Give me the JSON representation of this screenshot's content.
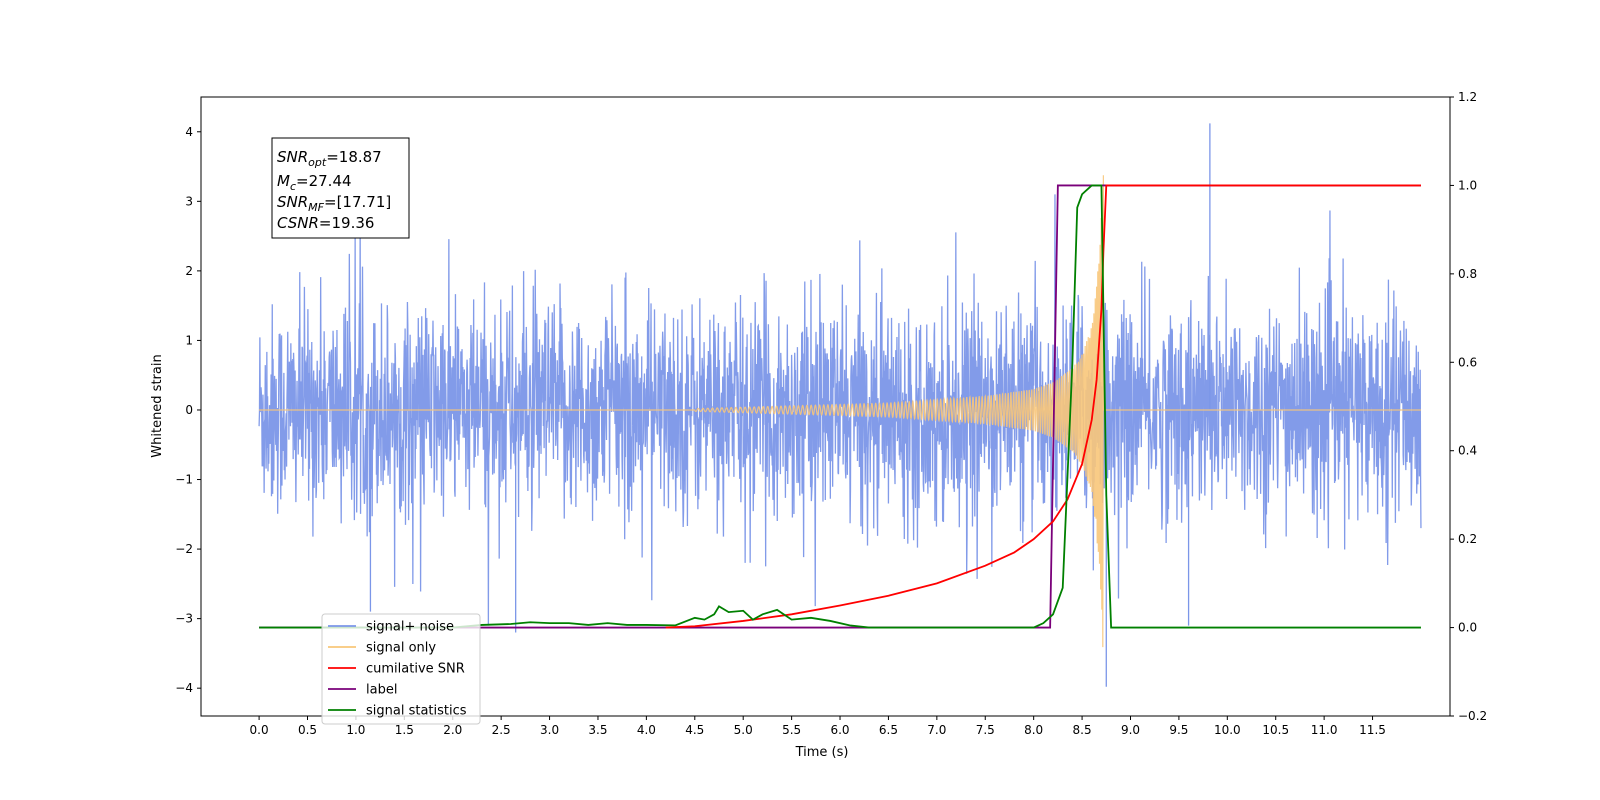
{
  "chart_data": {
    "type": "line",
    "xlabel": "Time (s)",
    "ylabel": "Whitened strain",
    "xlim": [
      -0.6,
      12.3
    ],
    "ylim": [
      -4.4,
      4.5
    ],
    "y2lim": [
      -0.2,
      1.2
    ],
    "x_ticks": [
      "0.0",
      "0.5",
      "1.0",
      "1.5",
      "2.0",
      "2.5",
      "3.0",
      "3.5",
      "4.0",
      "4.5",
      "5.0",
      "5.5",
      "6.0",
      "6.5",
      "7.0",
      "7.5",
      "8.0",
      "8.5",
      "9.0",
      "9.5",
      "10.0",
      "10.5",
      "11.0",
      "11.5"
    ],
    "y_ticks": [
      "4",
      "3",
      "2",
      "1",
      "0",
      "−1",
      "−2",
      "−3",
      "−4"
    ],
    "y2_ticks": [
      "1.2",
      "1.0",
      "0.8",
      "0.6",
      "0.4",
      "0.2",
      "0.0",
      "−0.2"
    ],
    "annotations": [
      {
        "main": "SNR",
        "sub": "opt",
        "rest": "=18.87"
      },
      {
        "main": "M",
        "sub": "c",
        "rest": "=27.44"
      },
      {
        "main": "SNR",
        "sub": "MF",
        "rest": "=[17.71]"
      },
      {
        "main": "CSNR",
        "sub": "",
        "rest": "=19.36"
      }
    ],
    "legend": {
      "position": "lower-left",
      "entries": [
        {
          "label": "signal+ noise",
          "color": "#7b96e8"
        },
        {
          "label": "signal only",
          "color": "#f8c77a"
        },
        {
          "label": "cumilative SNR",
          "color": "#ff0000"
        },
        {
          "label": "label",
          "color": "#7a007a"
        },
        {
          "label": "signal statistics",
          "color": "#008000"
        }
      ]
    },
    "series": [
      {
        "name": "signal+ noise",
        "axis": "left",
        "color": "#7b96e8",
        "description": "white noise, amplitude approx ±2, spikes up to 4.1 near t=9.8, down to -4 near t=8.75",
        "x_range": [
          0.0,
          12.0
        ],
        "envelope": [
          2.0,
          -2.0
        ]
      },
      {
        "name": "signal only",
        "axis": "left",
        "color": "#f8c77a",
        "description": "chirp growing from ~0 at t=4.5 to peak ~3.7 at t=8.7, zero after",
        "x": [
          4.5,
          5.5,
          6.5,
          7.0,
          7.5,
          8.0,
          8.2,
          8.4,
          8.5,
          8.6,
          8.65,
          8.7,
          8.72
        ],
        "amplitude": [
          0.02,
          0.06,
          0.1,
          0.15,
          0.2,
          0.3,
          0.4,
          0.6,
          0.8,
          1.2,
          1.8,
          2.8,
          3.7
        ]
      },
      {
        "name": "cumilative SNR",
        "axis": "right",
        "color": "#ff0000",
        "x": [
          4.2,
          4.5,
          5.0,
          5.5,
          6.0,
          6.5,
          7.0,
          7.5,
          7.8,
          8.0,
          8.2,
          8.35,
          8.5,
          8.6,
          8.65,
          8.7,
          8.72,
          8.75,
          12.0
        ],
        "y": [
          0.0,
          0.003,
          0.015,
          0.03,
          0.05,
          0.072,
          0.1,
          0.14,
          0.17,
          0.2,
          0.24,
          0.29,
          0.37,
          0.47,
          0.56,
          0.72,
          0.85,
          1.0,
          1.0
        ]
      },
      {
        "name": "label",
        "axis": "right",
        "color": "#7a007a",
        "x": [
          0.0,
          8.17,
          8.25,
          8.72,
          8.72,
          12.0
        ],
        "y": [
          0.0,
          0.0,
          1.0,
          1.0,
          1.0,
          1.0
        ]
      },
      {
        "name": "signal statistics",
        "axis": "right",
        "color": "#008000",
        "x": [
          0.0,
          2.0,
          2.3,
          2.6,
          2.8,
          3.0,
          3.2,
          3.4,
          3.6,
          3.8,
          4.0,
          4.3,
          4.5,
          4.6,
          4.7,
          4.75,
          4.85,
          5.0,
          5.1,
          5.2,
          5.35,
          5.5,
          5.7,
          5.9,
          6.1,
          6.3,
          8.0,
          8.1,
          8.2,
          8.3,
          8.4,
          8.45,
          8.5,
          8.6,
          8.7,
          8.75,
          8.8,
          12.0
        ],
        "y": [
          0.0,
          0.0,
          0.006,
          0.008,
          0.012,
          0.01,
          0.01,
          0.006,
          0.01,
          0.006,
          0.006,
          0.005,
          0.022,
          0.018,
          0.03,
          0.048,
          0.035,
          0.038,
          0.018,
          0.03,
          0.04,
          0.018,
          0.022,
          0.015,
          0.005,
          0.0,
          0.0,
          0.01,
          0.03,
          0.09,
          0.6,
          0.95,
          0.98,
          1.0,
          1.0,
          0.3,
          0.0,
          0.0
        ]
      }
    ]
  }
}
